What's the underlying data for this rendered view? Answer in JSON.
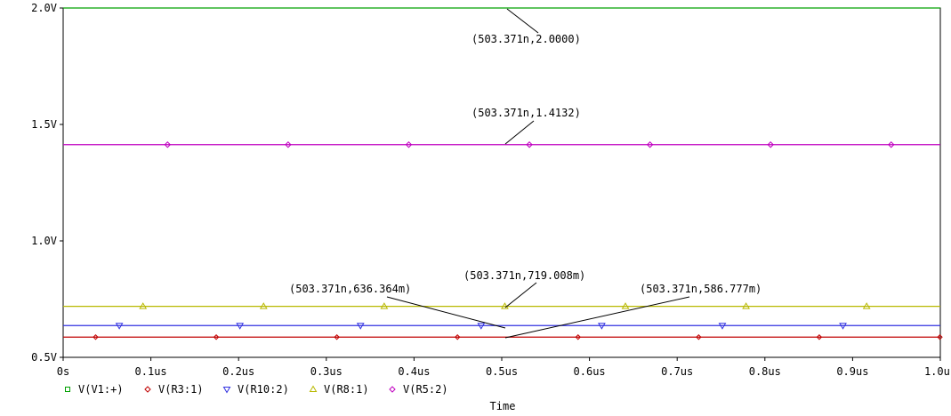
{
  "chart_data": {
    "type": "line",
    "xlabel": "Time",
    "x_range": [
      0,
      1.0
    ],
    "ylim": [
      0.5,
      2.0
    ],
    "x_ticks": [
      "0s",
      "0.1us",
      "0.2us",
      "0.3us",
      "0.4us",
      "0.5us",
      "0.6us",
      "0.7us",
      "0.8us",
      "0.9us",
      "1.0us"
    ],
    "y_ticks": [
      "0.5V",
      "1.0V",
      "1.5V",
      "2.0V"
    ],
    "series": [
      {
        "name": "V(V1:+)",
        "value": 2.0,
        "color": "#00a000",
        "marker": "square"
      },
      {
        "name": "V(R3:1)",
        "value": 0.586777,
        "color": "#c00000",
        "marker": "diamond-small"
      },
      {
        "name": "V(R10:2)",
        "value": 0.636364,
        "color": "#3030e0",
        "marker": "triangle-down"
      },
      {
        "name": "V(R8:1)",
        "value": 0.719008,
        "color": "#b8b800",
        "marker": "triangle-up"
      },
      {
        "name": "V(R5:2)",
        "value": 1.4132,
        "color": "#c000c0",
        "marker": "diamond"
      }
    ],
    "annotations": [
      {
        "text": "(503.371n,2.0000)",
        "x": 0.503371,
        "y": 2.0
      },
      {
        "text": "(503.371n,1.4132)",
        "x": 0.503371,
        "y": 1.4132
      },
      {
        "text": "(503.371n,719.008m)",
        "x": 0.503371,
        "y": 0.719008
      },
      {
        "text": "(503.371n,636.364m)",
        "x": 0.503371,
        "y": 0.636364
      },
      {
        "text": "(503.371n,586.777m)",
        "x": 0.503371,
        "y": 0.586777
      }
    ]
  }
}
